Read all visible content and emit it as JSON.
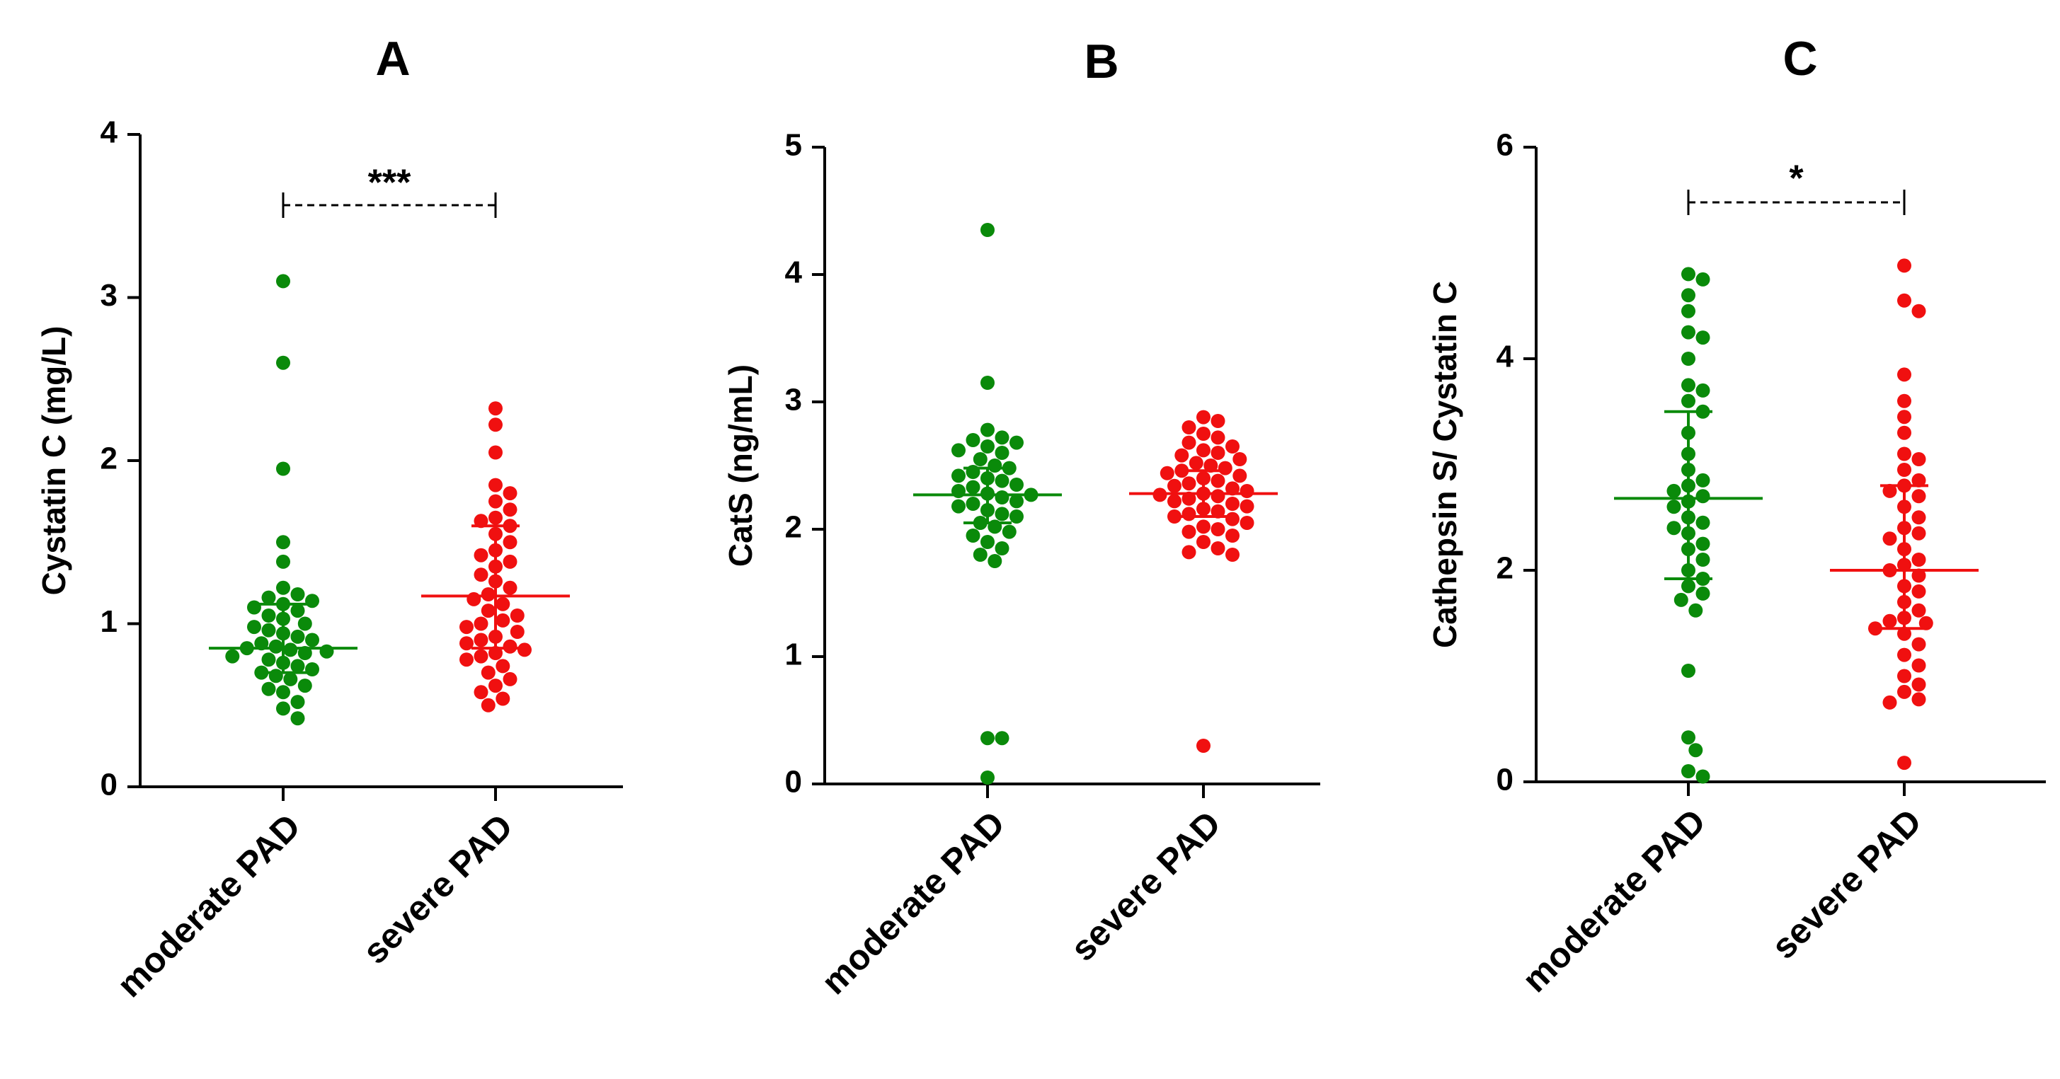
{
  "colors": {
    "moderate": "#0a8a0a",
    "severe": "#f01010",
    "axis": "#000000"
  },
  "chart_data": [
    {
      "type": "scatter",
      "title": "A",
      "xlabel": "",
      "ylabel": "Cystatin C (mg/L)",
      "ylim": [
        0,
        4
      ],
      "yticks": [
        "0",
        "1",
        "2",
        "3",
        "4"
      ],
      "categories": [
        "moderate PAD",
        "severe PAD"
      ],
      "significance": "***",
      "series": [
        {
          "name": "moderate PAD",
          "mean": 0.85,
          "sd_low": 0.7,
          "sd_high": 1.12,
          "values": [
            3.1,
            2.6,
            1.95,
            1.5,
            1.38,
            1.22,
            1.18,
            1.16,
            1.14,
            1.12,
            1.1,
            1.08,
            1.05,
            1.03,
            1.0,
            0.98,
            0.96,
            0.94,
            0.92,
            0.9,
            0.88,
            0.86,
            0.85,
            0.84,
            0.83,
            0.82,
            0.8,
            0.78,
            0.76,
            0.74,
            0.72,
            0.7,
            0.68,
            0.66,
            0.62,
            0.6,
            0.58,
            0.52,
            0.48,
            0.42
          ]
        },
        {
          "name": "severe PAD",
          "mean": 1.17,
          "sd_low": 0.85,
          "sd_high": 1.6,
          "values": [
            2.32,
            2.22,
            2.05,
            1.85,
            1.8,
            1.75,
            1.7,
            1.65,
            1.63,
            1.6,
            1.55,
            1.5,
            1.45,
            1.42,
            1.38,
            1.35,
            1.3,
            1.26,
            1.22,
            1.18,
            1.15,
            1.12,
            1.08,
            1.05,
            1.02,
            1.0,
            0.98,
            0.95,
            0.92,
            0.9,
            0.88,
            0.86,
            0.84,
            0.82,
            0.8,
            0.78,
            0.74,
            0.7,
            0.66,
            0.62,
            0.58,
            0.54,
            0.5
          ]
        }
      ]
    },
    {
      "type": "scatter",
      "title": "B",
      "xlabel": "",
      "ylabel": "CatS (ng/mL)",
      "ylim": [
        0,
        5
      ],
      "yticks": [
        "0",
        "1",
        "2",
        "3",
        "4",
        "5"
      ],
      "categories": [
        "moderate PAD",
        "severe PAD"
      ],
      "significance": "",
      "series": [
        {
          "name": "moderate PAD",
          "mean": 2.27,
          "sd_low": 2.05,
          "sd_high": 2.48,
          "values": [
            4.35,
            3.15,
            2.78,
            2.72,
            2.7,
            2.68,
            2.65,
            2.62,
            2.6,
            2.55,
            2.5,
            2.48,
            2.45,
            2.42,
            2.4,
            2.38,
            2.35,
            2.33,
            2.3,
            2.28,
            2.27,
            2.25,
            2.22,
            2.2,
            2.18,
            2.15,
            2.12,
            2.1,
            2.05,
            2.02,
            1.98,
            1.95,
            1.9,
            1.85,
            1.8,
            1.75,
            0.36,
            0.36,
            0.05
          ]
        },
        {
          "name": "severe PAD",
          "mean": 2.28,
          "sd_low": 2.1,
          "sd_high": 2.46,
          "values": [
            2.88,
            2.85,
            2.8,
            2.75,
            2.72,
            2.68,
            2.65,
            2.62,
            2.6,
            2.58,
            2.55,
            2.52,
            2.5,
            2.48,
            2.46,
            2.44,
            2.42,
            2.4,
            2.38,
            2.36,
            2.34,
            2.32,
            2.3,
            2.28,
            2.27,
            2.26,
            2.24,
            2.22,
            2.2,
            2.18,
            2.16,
            2.14,
            2.12,
            2.1,
            2.08,
            2.05,
            2.02,
            2.0,
            1.98,
            1.95,
            1.9,
            1.85,
            1.82,
            1.8,
            0.3
          ]
        }
      ]
    },
    {
      "type": "scatter",
      "title": "C",
      "xlabel": "",
      "ylabel": "Cathepsin S/ Cystatin C",
      "ylim": [
        0,
        6
      ],
      "yticks": [
        "0",
        "2",
        "4",
        "6"
      ],
      "categories": [
        "moderate PAD",
        "severe PAD"
      ],
      "significance": "*",
      "series": [
        {
          "name": "moderate PAD",
          "mean": 2.68,
          "sd_low": 1.92,
          "sd_high": 3.5,
          "values": [
            4.8,
            4.75,
            4.6,
            4.45,
            4.25,
            4.2,
            4.0,
            3.75,
            3.7,
            3.6,
            3.5,
            3.3,
            3.1,
            2.95,
            2.85,
            2.8,
            2.75,
            2.7,
            2.65,
            2.6,
            2.5,
            2.45,
            2.4,
            2.35,
            2.25,
            2.2,
            2.1,
            2.0,
            1.92,
            1.85,
            1.78,
            1.72,
            1.62,
            1.05,
            0.42,
            0.3,
            0.1,
            0.05
          ]
        },
        {
          "name": "severe PAD",
          "mean": 2.0,
          "sd_low": 1.45,
          "sd_high": 2.8,
          "values": [
            4.88,
            4.55,
            4.45,
            3.85,
            3.6,
            3.45,
            3.3,
            3.1,
            3.05,
            2.95,
            2.85,
            2.8,
            2.75,
            2.7,
            2.6,
            2.5,
            2.4,
            2.35,
            2.3,
            2.2,
            2.1,
            2.05,
            2.0,
            1.95,
            1.85,
            1.8,
            1.7,
            1.62,
            1.55,
            1.52,
            1.5,
            1.45,
            1.4,
            1.3,
            1.2,
            1.1,
            1.0,
            0.92,
            0.85,
            0.78,
            0.75,
            0.18
          ]
        }
      ]
    }
  ]
}
